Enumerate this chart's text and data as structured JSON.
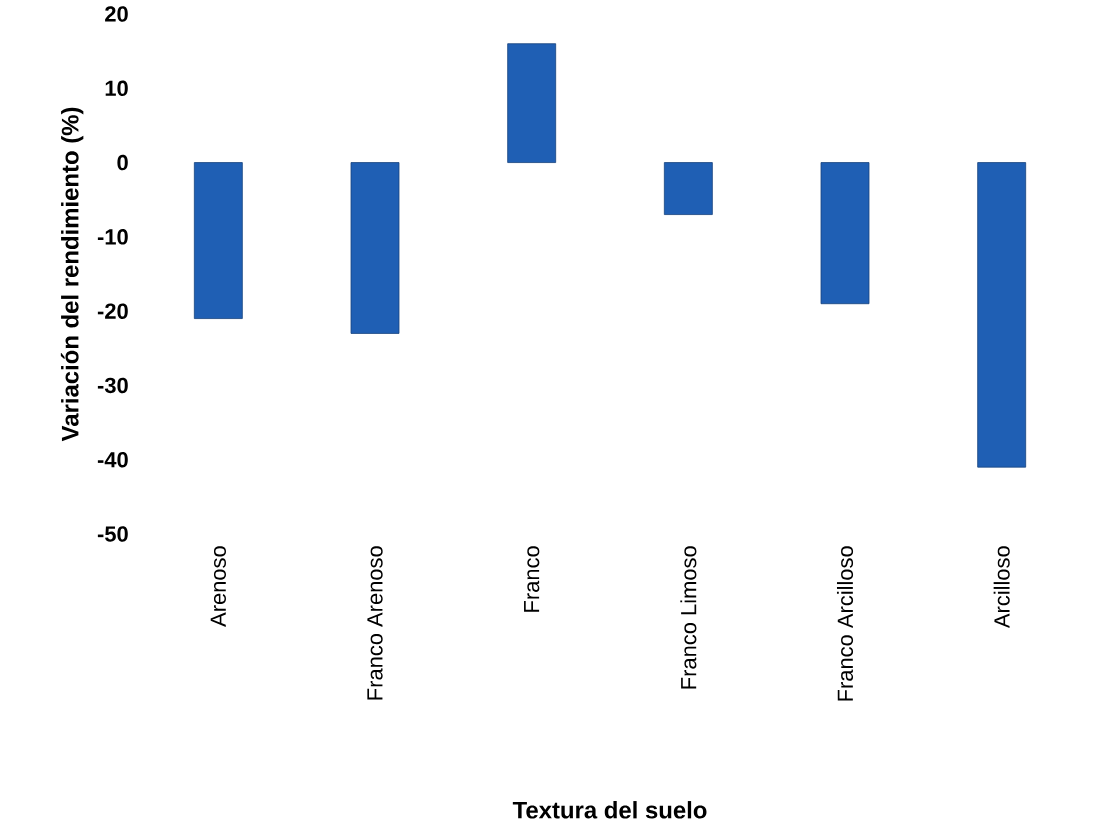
{
  "chart_data": {
    "type": "bar",
    "xlabel": "Textura del suelo",
    "ylabel": "Variación del rendimiento (%)",
    "categories": [
      "Arenoso",
      "Franco Arenoso",
      "Franco",
      "Franco Limoso",
      "Franco Arcilloso",
      "Arcilloso"
    ],
    "values": [
      -21,
      -23,
      16,
      -7,
      -19,
      -41
    ],
    "color": "#1f5fb4",
    "ylim": [
      -50,
      20
    ],
    "yticks": [
      -50,
      -40,
      -30,
      -20,
      -10,
      0,
      10,
      20
    ],
    "grid": false
  }
}
